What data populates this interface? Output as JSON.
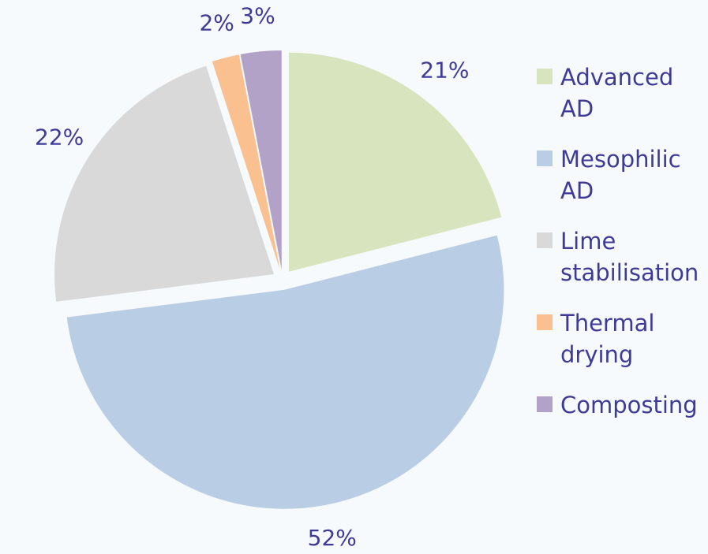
{
  "chart_data": {
    "type": "pie",
    "categories": [
      "Advanced AD",
      "Mesophilic AD",
      "Lime stabilisation",
      "Thermal drying",
      "Composting"
    ],
    "values": [
      21,
      52,
      22,
      2,
      3
    ],
    "value_labels": [
      "21%",
      "52%",
      "22%",
      "2%",
      "3%"
    ],
    "colors": [
      "#d7e4bd",
      "#b9cde5",
      "#d9d9d9",
      "#fac090",
      "#b3a2c7"
    ],
    "legend": "right"
  }
}
